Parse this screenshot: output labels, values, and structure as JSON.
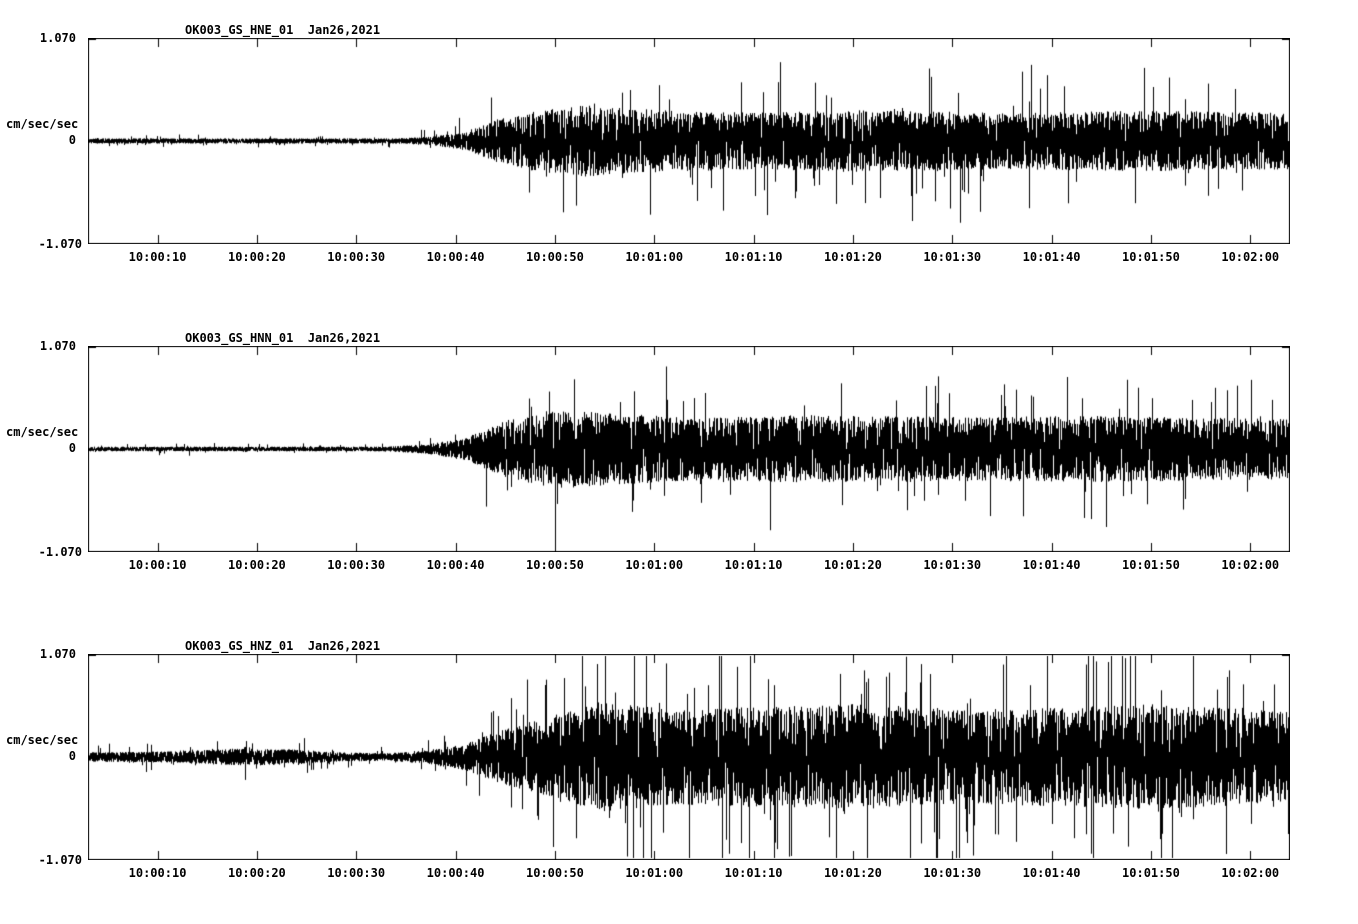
{
  "page": {
    "background": "#ffffff",
    "trace_color": "#000000"
  },
  "chart_data": [
    {
      "type": "line",
      "chart_kind": "seismogram-trace",
      "channel": "HNE",
      "title": "OK003_GS_HNE_01  Jan26,2021",
      "ylabel": "cm/sec/sec",
      "ylim": [
        -1.07,
        1.07
      ],
      "ytick_labels": [
        "1.070",
        "0",
        "-1.070"
      ],
      "x_start_s": 3,
      "x_end_s": 124,
      "xtick_seconds": [
        10,
        20,
        30,
        40,
        50,
        60,
        70,
        80,
        90,
        100,
        110,
        120
      ],
      "xtick_labels": [
        "10:00:10",
        "10:00:20",
        "10:00:30",
        "10:00:40",
        "10:00:50",
        "10:01:00",
        "10:01:10",
        "10:01:20",
        "10:01:30",
        "10:01:40",
        "10:01:50",
        "10:02:00"
      ],
      "envelope": [
        [
          3,
          0.028
        ],
        [
          34,
          0.028
        ],
        [
          38,
          0.05
        ],
        [
          41,
          0.1
        ],
        [
          44,
          0.22
        ],
        [
          48,
          0.32
        ],
        [
          53,
          0.38
        ],
        [
          58,
          0.34
        ],
        [
          70,
          0.3
        ],
        [
          80,
          0.33
        ],
        [
          95,
          0.3
        ],
        [
          110,
          0.32
        ],
        [
          124,
          0.3
        ]
      ],
      "spike_prob": 0.03,
      "seed": 11
    },
    {
      "type": "line",
      "chart_kind": "seismogram-trace",
      "channel": "HNN",
      "title": "OK003_GS_HNN_01  Jan26,2021",
      "ylabel": "cm/sec/sec",
      "ylim": [
        -1.07,
        1.07
      ],
      "ytick_labels": [
        "1.070",
        "0",
        "-1.070"
      ],
      "x_start_s": 3,
      "x_end_s": 124,
      "xtick_seconds": [
        10,
        20,
        30,
        40,
        50,
        60,
        70,
        80,
        90,
        100,
        110,
        120
      ],
      "xtick_labels": [
        "10:00:10",
        "10:00:20",
        "10:00:30",
        "10:00:40",
        "10:00:50",
        "10:01:00",
        "10:01:10",
        "10:01:20",
        "10:01:30",
        "10:01:40",
        "10:01:50",
        "10:02:00"
      ],
      "envelope": [
        [
          3,
          0.025
        ],
        [
          33,
          0.025
        ],
        [
          37,
          0.05
        ],
        [
          41,
          0.12
        ],
        [
          45,
          0.3
        ],
        [
          50,
          0.42
        ],
        [
          56,
          0.38
        ],
        [
          65,
          0.33
        ],
        [
          75,
          0.36
        ],
        [
          90,
          0.34
        ],
        [
          105,
          0.35
        ],
        [
          124,
          0.32
        ]
      ],
      "spike_prob": 0.025,
      "seed": 22
    },
    {
      "type": "line",
      "chart_kind": "seismogram-trace",
      "channel": "HNZ",
      "title": "OK003_GS_HNZ_01  Jan26,2021",
      "ylabel": "cm/sec/sec",
      "ylim": [
        -1.07,
        1.07
      ],
      "ytick_labels": [
        "1.070",
        "0",
        "-1.070"
      ],
      "x_start_s": 3,
      "x_end_s": 124,
      "xtick_seconds": [
        10,
        20,
        30,
        40,
        50,
        60,
        70,
        80,
        90,
        100,
        110,
        120
      ],
      "xtick_labels": [
        "10:00:10",
        "10:00:20",
        "10:00:30",
        "10:00:40",
        "10:00:50",
        "10:01:00",
        "10:01:10",
        "10:01:20",
        "10:01:30",
        "10:01:40",
        "10:01:50",
        "10:02:00"
      ],
      "envelope": [
        [
          3,
          0.05
        ],
        [
          12,
          0.06
        ],
        [
          18,
          0.09
        ],
        [
          24,
          0.08
        ],
        [
          28,
          0.05
        ],
        [
          33,
          0.04
        ],
        [
          37,
          0.07
        ],
        [
          41,
          0.14
        ],
        [
          45,
          0.3
        ],
        [
          50,
          0.45
        ],
        [
          55,
          0.58
        ],
        [
          62,
          0.5
        ],
        [
          70,
          0.53
        ],
        [
          80,
          0.56
        ],
        [
          90,
          0.5
        ],
        [
          100,
          0.52
        ],
        [
          110,
          0.56
        ],
        [
          124,
          0.48
        ]
      ],
      "spike_prob": 0.04,
      "seed": 33
    }
  ]
}
